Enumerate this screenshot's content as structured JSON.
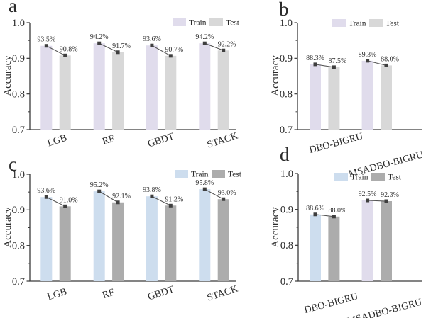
{
  "figure": {
    "background": "#ffffff",
    "axis_color": "#3a3a3a",
    "text_color": "#2b2b2b",
    "marker_color": "#3f3f3f",
    "connector_color": "#555555"
  },
  "chart_data": [
    {
      "panel": "a",
      "type": "bar",
      "title": "",
      "xlabel": "",
      "ylabel": "Accuracy",
      "ylim": [
        0.7,
        1.0
      ],
      "yticks": [
        1.0,
        0.9,
        0.8,
        0.7
      ],
      "ytick_labels": [
        "1.0",
        "0.9",
        "0.8",
        "0.7"
      ],
      "minor_yticks": [
        0.95,
        0.85,
        0.75
      ],
      "grid": false,
      "legend_position": "top-right-inside",
      "categories": [
        "LGB",
        "RF",
        "GBDT",
        "STACK"
      ],
      "series": [
        {
          "name": "Train",
          "color": "#e0dcec",
          "values": [
            0.935,
            0.942,
            0.936,
            0.942
          ],
          "data_labels": [
            "93.5%",
            "94.2%",
            "93.6%",
            "94.2%"
          ]
        },
        {
          "name": "Test",
          "color": "#d8d8d8",
          "values": [
            0.908,
            0.917,
            0.907,
            0.922
          ],
          "data_labels": [
            "90.8%",
            "91.7%",
            "90.7%",
            "92.2%"
          ]
        }
      ]
    },
    {
      "panel": "b",
      "type": "bar",
      "title": "",
      "xlabel": "",
      "ylabel": "Accuracy",
      "ylim": [
        0.7,
        1.0
      ],
      "yticks": [
        1.0,
        0.9,
        0.8,
        0.7
      ],
      "ytick_labels": [
        "1.0",
        "0.9",
        "0.8",
        "0.7"
      ],
      "minor_yticks": [
        0.95,
        0.85,
        0.75
      ],
      "grid": false,
      "legend_position": "top-right-inside",
      "categories": [
        "DBO-BIGRU",
        "MSADBO-BIGRU"
      ],
      "series": [
        {
          "name": "Train",
          "color": "#e0dcec",
          "values": [
            0.883,
            0.893
          ],
          "data_labels": [
            "88.3%",
            "89.3%"
          ]
        },
        {
          "name": "Test",
          "color": "#d8d8d8",
          "values": [
            0.875,
            0.88
          ],
          "data_labels": [
            "87.5%",
            "88.0%"
          ]
        }
      ]
    },
    {
      "panel": "c",
      "type": "bar",
      "title": "",
      "xlabel": "",
      "ylabel": "Accuracy",
      "ylim": [
        0.7,
        1.0
      ],
      "yticks": [
        1.0,
        0.9,
        0.8,
        0.7
      ],
      "ytick_labels": [
        "1.0",
        "0.9",
        "0.8",
        "0.7"
      ],
      "minor_yticks": [
        0.95,
        0.85,
        0.75
      ],
      "grid": false,
      "legend_position": "top-right-inside",
      "categories": [
        "LGB",
        "RF",
        "GBDT",
        "STACK"
      ],
      "series": [
        {
          "name": "Train",
          "color": "#cdddee",
          "values": [
            0.936,
            0.952,
            0.938,
            0.958
          ],
          "data_labels": [
            "93.6%",
            "95.2%",
            "93.8%",
            "95.8%"
          ]
        },
        {
          "name": "Test",
          "color": "#acacac",
          "values": [
            0.91,
            0.921,
            0.912,
            0.93
          ],
          "data_labels": [
            "91.0%",
            "92.1%",
            "91.2%",
            "93.0%"
          ]
        }
      ]
    },
    {
      "panel": "d",
      "type": "bar",
      "title": "",
      "xlabel": "",
      "ylabel": "Accuracy",
      "ylim": [
        0.7,
        1.0
      ],
      "yticks": [
        1.0,
        0.9,
        0.8,
        0.7
      ],
      "ytick_labels": [
        "1.0",
        "0.9",
        "0.8",
        "0.7"
      ],
      "minor_yticks": [
        0.95,
        0.85,
        0.75
      ],
      "grid": false,
      "legend_position": "top-right-inside",
      "categories": [
        "DBO-BIGRU",
        "MSADBO-BIGRU"
      ],
      "series": [
        {
          "name": "Train",
          "color": "#cdddee",
          "bar_colors": [
            "#cdddee",
            "#e0dcec"
          ],
          "values": [
            0.886,
            0.925
          ],
          "data_labels": [
            "88.6%",
            "92.5%"
          ]
        },
        {
          "name": "Test",
          "color": "#acacac",
          "values": [
            0.88,
            0.923
          ],
          "data_labels": [
            "88.0%",
            "92.3%"
          ]
        }
      ]
    }
  ]
}
